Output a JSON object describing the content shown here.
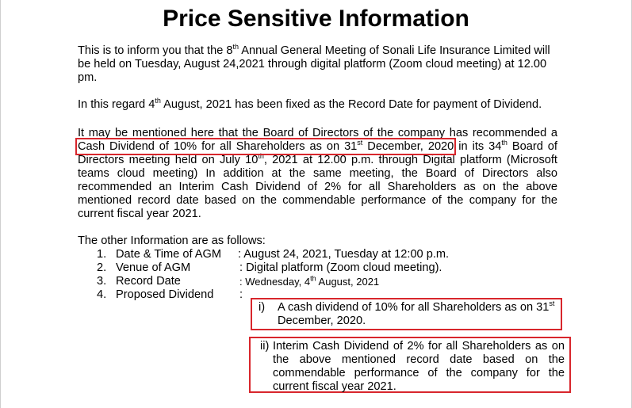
{
  "title": "Price Sensitive Information",
  "para1": {
    "a": "This is to inform you that the 8",
    "sup": "th",
    "b": " Annual General Meeting of Sonali Life Insurance Limited will be held on Tuesday, August 24,2021 through digital platform (Zoom cloud meeting) at 12.00 pm."
  },
  "para2": {
    "a": "In this regard 4",
    "sup": "th",
    "b": " August, 2021 has been fixed as the Record Date for payment of Dividend."
  },
  "para3": {
    "a": "It may be mentioned here that the Board of Directors of the company has recommended a ",
    "hl_a": "Cash Dividend of 10% for all Shareholders as on 31",
    "hl_sup": "st",
    "hl_b": " December, 2020",
    "b": " in its 34",
    "sup1": "th",
    "c": " Board of Directors meeting held on July 10",
    "sup2": "th",
    "d": ", 2021 at 12.00 p.m. through Digital platform (Microsoft teams cloud meeting) In addition at the same meeting, the Board of Directors also recommended an Interim Cash Dividend of 2% for all Shareholders as on the above mentioned record date based on the commendable performance of the company for the current fiscal year 2021."
  },
  "para4": "The other Information are as follows:",
  "list": [
    {
      "num": "1.",
      "label": "Date & Time of AGM",
      "value": ": August 24, 2021, Tuesday at 12:00 p.m."
    },
    {
      "num": "2.",
      "label": "Venue of AGM",
      "value": ": Digital platform (Zoom cloud meeting)."
    },
    {
      "num": "3.",
      "label": "Record Date",
      "value_a": ": Wednesday, 4",
      "value_sup": "th",
      "value_b": " August, 2021"
    },
    {
      "num": "4.",
      "label": "Proposed Dividend",
      "value": ":"
    }
  ],
  "dividends": [
    {
      "roman": "i)",
      "text_a": "A cash dividend of 10% for all Shareholders as on 31",
      "text_sup": "st",
      "text_b": "December, 2020."
    },
    {
      "roman": "ii)",
      "lines": [
        "Interim Cash Dividend of 2% for all Shareholders as on",
        "the above mentioned record date based on the",
        "commendable performance of the company for the",
        "current fiscal year 2021."
      ]
    }
  ],
  "colors": {
    "highlight": "#d8262c",
    "text": "#000000",
    "background": "#ffffff"
  }
}
